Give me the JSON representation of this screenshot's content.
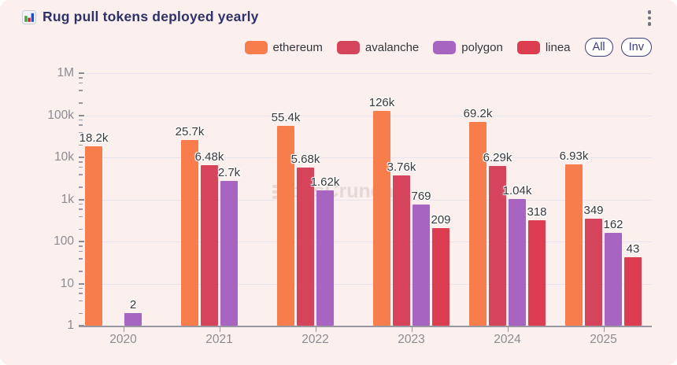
{
  "header": {
    "title": "Rug pull tokens deployed yearly",
    "icon": "bar-chart-icon"
  },
  "menu": {
    "icon": "kebab-menu-icon"
  },
  "controls": {
    "all_label": "All",
    "inv_label": "Inv"
  },
  "watermark": "bitsCrunch",
  "colors": {
    "background": "#fbf0ed",
    "title": "#2e3268",
    "grid": "#e7e3f0",
    "axis": "#98979f",
    "tick_label": "#8b8b94",
    "value_label": "#38383d",
    "pill_accent": "#3b3f77",
    "ethereum": "#f87d4c",
    "avalanche": "#d6445c",
    "polygon": "#a765c1",
    "linea": "#dc3d51"
  },
  "chart_data": {
    "type": "bar",
    "scale": "log",
    "title": "Rug pull tokens deployed yearly",
    "categories": [
      "2020",
      "2021",
      "2022",
      "2023",
      "2024",
      "2025"
    ],
    "series": [
      {
        "name": "ethereum",
        "color": "#f87d4c",
        "values": [
          18200,
          25700,
          55400,
          126000,
          69200,
          6930
        ],
        "labels": [
          "18.2k",
          "25.7k",
          "55.4k",
          "126k",
          "69.2k",
          "6.93k"
        ]
      },
      {
        "name": "avalanche",
        "color": "#d6445c",
        "values": [
          null,
          6480,
          5680,
          3760,
          6290,
          349
        ],
        "labels": [
          null,
          "6.48k",
          "5.68k",
          "3.76k",
          "6.29k",
          "349"
        ]
      },
      {
        "name": "polygon",
        "color": "#a765c1",
        "values": [
          2,
          2700,
          1620,
          769,
          1040,
          162
        ],
        "labels": [
          "2",
          "2.7k",
          "1.62k",
          "769",
          "1.04k",
          "162"
        ]
      },
      {
        "name": "linea",
        "color": "#dc3d51",
        "values": [
          null,
          null,
          null,
          209,
          318,
          43
        ],
        "labels": [
          null,
          null,
          null,
          "209",
          "318",
          "43"
        ]
      }
    ],
    "y_ticks": [
      "1M",
      "100k",
      "10k",
      "1k",
      "100",
      "10",
      "1"
    ],
    "ylim": [
      1,
      1000000
    ],
    "grid": true,
    "legend_position": "top-right"
  }
}
